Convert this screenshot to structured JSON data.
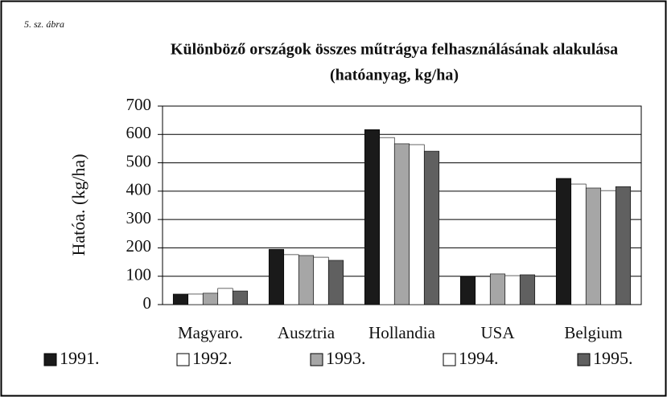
{
  "chart_data": {
    "type": "bar",
    "figure_label": "5. sz. ábra",
    "title": "Különböző országok összes műtrágya felhasználásának alakulása",
    "subtitle": "(hatóanyag, kg/ha)",
    "y_label": "Hatóa. (kg/ha)",
    "categories": [
      "Magyaro.",
      "Ausztria",
      "Hollandia",
      "USA",
      "Belgium"
    ],
    "series": [
      {
        "name": "1991.",
        "color": "#1a1a1a",
        "values": [
          37,
          195,
          617,
          99,
          445
        ]
      },
      {
        "name": "1992.",
        "color": "#ffffff",
        "values": [
          37,
          176,
          589,
          99,
          425
        ]
      },
      {
        "name": "1993.",
        "color": "#a6a6a6",
        "values": [
          40,
          173,
          567,
          108,
          411
        ]
      },
      {
        "name": "1994.",
        "color": "#ffffff",
        "values": [
          57,
          167,
          564,
          102,
          402
        ]
      },
      {
        "name": "1995.",
        "color": "#606060",
        "values": [
          48,
          156,
          541,
          105,
          416
        ]
      }
    ],
    "ylim": [
      0,
      700
    ],
    "yticks": [
      0,
      100,
      200,
      300,
      400,
      500,
      600,
      700
    ],
    "grid": true
  }
}
